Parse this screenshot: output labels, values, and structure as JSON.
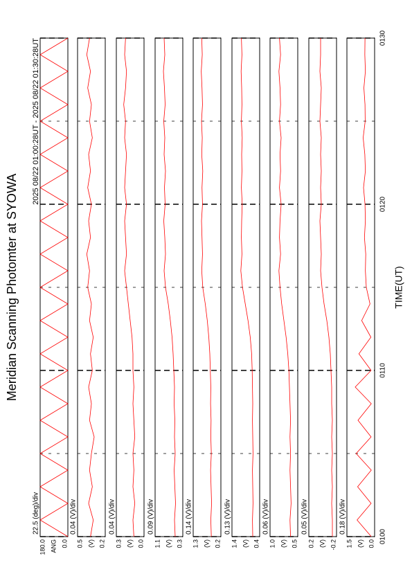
{
  "chart_data": {
    "type": "line",
    "title": "Meridian Scanning Photomter at SYOWA",
    "subtitle": "2025 08/22 01:00:28UT - 2025 08/22 01:30:28UT",
    "xlabel": "TIME(UT)",
    "x": [
      0,
      1,
      2,
      3,
      4,
      5,
      6,
      7,
      8,
      9,
      10,
      11,
      12,
      13,
      14,
      15,
      16,
      17,
      18,
      19,
      20,
      21,
      22,
      23,
      24,
      25,
      26,
      27,
      28,
      29,
      30
    ],
    "xlim": [
      0,
      30
    ],
    "xticks": [
      {
        "value": 0,
        "label": "0100"
      },
      {
        "value": 10,
        "label": "0110"
      },
      {
        "value": 20,
        "label": "0120"
      },
      {
        "value": 30,
        "label": "0130"
      }
    ],
    "xminor": [
      5,
      15,
      25
    ],
    "panels": [
      {
        "ylabel": "ANG",
        "scale_label": "22.5 (deg)/div",
        "ylim": [
          0,
          180
        ],
        "yticks": [
          {
            "value": 180,
            "label": "180.0"
          },
          {
            "value": 0,
            "label": "0.0"
          }
        ],
        "series": [
          {
            "color": "#ff0000",
            "values": [
              0,
              180,
              0,
              180,
              0,
              180,
              0,
              180,
              0,
              180,
              0,
              180,
              0,
              180,
              0,
              180,
              0,
              180,
              0,
              180,
              0,
              180,
              0,
              180,
              0,
              180,
              0,
              180,
              0,
              180,
              0
            ]
          }
        ]
      },
      {
        "ylabel": "(V)",
        "scale_label": "0.04 (V)/div",
        "ylim": [
          0.2,
          0.5
        ],
        "yticks": [
          0.5,
          0.2
        ],
        "series": [
          {
            "color": "#ff0000",
            "values": [
              0.36,
              0.33,
              0.38,
              0.34,
              0.37,
              0.35,
              0.32,
              0.37,
              0.35,
              0.38,
              0.34,
              0.36,
              0.33,
              0.37,
              0.35,
              0.39,
              0.37,
              0.4,
              0.36,
              0.38,
              0.35,
              0.39,
              0.36,
              0.38,
              0.34,
              0.37,
              0.35,
              0.39,
              0.36,
              0.4,
              0.37
            ]
          }
        ]
      },
      {
        "ylabel": "(V)",
        "scale_label": "0.04 (V)/div",
        "ylim": [
          0,
          0.3
        ],
        "yticks": [
          0.3,
          {
            "value": 0,
            "label": "0.0"
          }
        ],
        "series": [
          {
            "color": "#ff0000",
            "values": [
              0.11,
              0.12,
              0.1,
              0.12,
              0.11,
              0.12,
              0.1,
              0.11,
              0.12,
              0.11,
              0.12,
              0.12,
              0.13,
              0.15,
              0.17,
              0.19,
              0.21,
              0.19,
              0.2,
              0.21,
              0.19,
              0.21,
              0.2,
              0.19,
              0.21,
              0.2,
              0.22,
              0.2,
              0.19,
              0.21,
              0.2
            ]
          }
        ]
      },
      {
        "ylabel": "(V)",
        "scale_label": "0.09 (V)/div",
        "ylim": [
          0.3,
          1.1
        ],
        "yticks": [
          1.1,
          0.3
        ],
        "series": [
          {
            "color": "#ff0000",
            "values": [
              0.52,
              0.54,
              0.51,
              0.53,
              0.55,
              0.52,
              0.54,
              0.53,
              0.55,
              0.54,
              0.56,
              0.58,
              0.61,
              0.66,
              0.72,
              0.8,
              0.84,
              0.8,
              0.82,
              0.85,
              0.81,
              0.83,
              0.8,
              0.84,
              0.82,
              0.85,
              0.81,
              0.83,
              0.86,
              0.82,
              0.84
            ]
          }
        ]
      },
      {
        "ylabel": "(V)",
        "scale_label": "0.14 (V)/div",
        "ylim": [
          0.2,
          1.3
        ],
        "yticks": [
          1.3,
          0.2
        ],
        "series": [
          {
            "color": "#ff0000",
            "values": [
              0.58,
              0.6,
              0.57,
              0.59,
              0.61,
              0.58,
              0.6,
              0.59,
              0.61,
              0.6,
              0.62,
              0.64,
              0.68,
              0.74,
              0.82,
              0.92,
              0.96,
              0.93,
              0.95,
              0.97,
              0.93,
              0.95,
              0.92,
              0.96,
              0.94,
              0.97,
              0.93,
              0.95,
              0.98,
              0.94,
              0.96
            ]
          }
        ]
      },
      {
        "ylabel": "(V)",
        "scale_label": "0.13 (V)/div",
        "ylim": [
          0.4,
          1.4
        ],
        "yticks": [
          1.4,
          0.4
        ],
        "series": [
          {
            "color": "#ff0000",
            "values": [
              0.65,
              0.66,
              0.64,
              0.65,
              0.66,
              0.64,
              0.65,
              0.66,
              0.65,
              0.66,
              0.67,
              0.69,
              0.74,
              0.82,
              0.92,
              1.02,
              1.08,
              1.04,
              1.06,
              1.05,
              1.03,
              1.06,
              1.04,
              1.05,
              1.03,
              1.06,
              1.04,
              1.05,
              1.07,
              1.04,
              1.06
            ]
          }
        ]
      },
      {
        "ylabel": "(V)",
        "scale_label": "0.06 (V)/div",
        "ylim": [
          0.5,
          1.0
        ],
        "yticks": [
          {
            "value": 1.0,
            "label": "1.0"
          },
          0.5
        ],
        "series": [
          {
            "color": "#ff0000",
            "values": [
              0.63,
              0.64,
              0.62,
              0.63,
              0.64,
              0.63,
              0.64,
              0.63,
              0.64,
              0.65,
              0.66,
              0.68,
              0.71,
              0.75,
              0.79,
              0.82,
              0.84,
              0.81,
              0.83,
              0.82,
              0.8,
              0.83,
              0.81,
              0.82,
              0.8,
              0.83,
              0.81,
              0.82,
              0.84,
              0.81,
              0.83
            ]
          }
        ]
      },
      {
        "ylabel": "(V)",
        "scale_label": "0.05 (V)/div",
        "ylim": [
          -0.2,
          0.2
        ],
        "yticks": [
          0.2,
          -0.2
        ],
        "series": [
          {
            "color": "#ff0000",
            "values": [
              -0.14,
              -0.14,
              -0.13,
              -0.14,
              -0.13,
              -0.14,
              -0.13,
              -0.14,
              -0.13,
              -0.13,
              -0.12,
              -0.11,
              -0.09,
              -0.06,
              -0.02,
              0.01,
              0.03,
              0.02,
              0.03,
              0.04,
              0.02,
              0.03,
              0.02,
              0.03,
              0.02,
              0.04,
              0.03,
              0.02,
              0.04,
              0.03,
              0.03
            ]
          }
        ]
      },
      {
        "ylabel": "(V)",
        "scale_label": "0.18 (V)/div",
        "ylim": [
          0,
          1.5
        ],
        "yticks": [
          1.5,
          {
            "value": 0,
            "label": "0.0"
          }
        ],
        "series": [
          {
            "color": "#ff0000",
            "values": [
              0.18,
              0.95,
              0.19,
              0.92,
              0.18,
              1.0,
              0.19,
              0.9,
              0.18,
              1.05,
              0.19,
              0.85,
              0.2,
              0.7,
              0.25,
              0.45,
              0.5,
              0.48,
              0.55,
              0.5,
              0.52,
              0.6,
              0.5,
              0.53,
              0.62,
              0.51,
              0.52,
              0.58,
              0.5,
              0.53,
              0.52
            ]
          }
        ]
      }
    ]
  }
}
